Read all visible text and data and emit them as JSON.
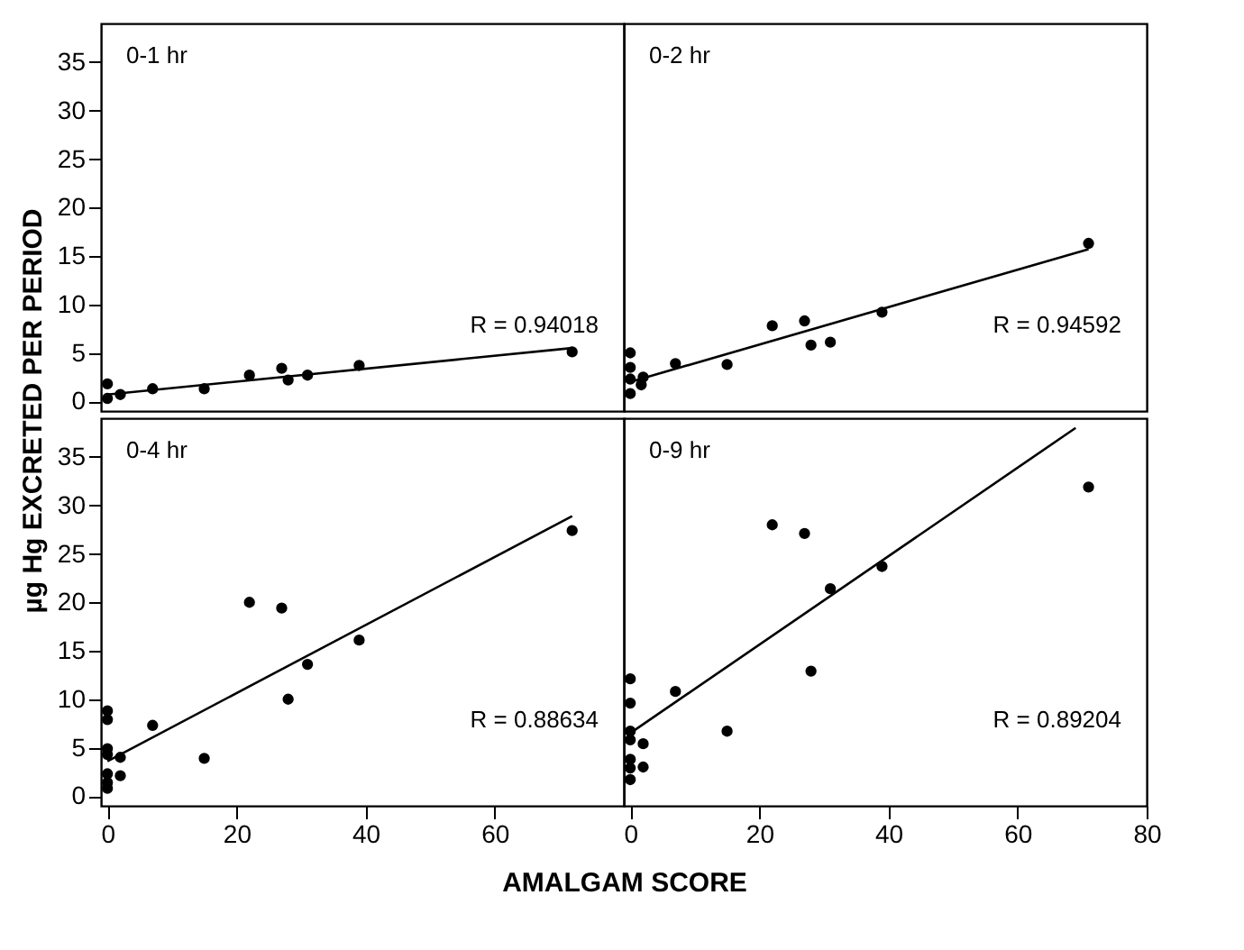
{
  "chart_data": [
    {
      "type": "scatter",
      "ylabel": "µg Hg EXCRETED PER PERIOD",
      "xlim": [
        -1,
        80
      ],
      "ylim": [
        -1,
        39
      ],
      "yticks": [
        0,
        5,
        10,
        15,
        20,
        25,
        30,
        35
      ],
      "tick_labels": "y",
      "marker": "circle",
      "annotations": [
        "0-1 hr",
        "R = 0.94018"
      ],
      "series": [
        {
          "type": "scatter",
          "color": "#000000",
          "x": [
            0,
            0,
            2,
            7,
            15,
            22,
            27,
            28,
            31,
            39,
            72
          ],
          "values": [
            1.8,
            0.3,
            0.7,
            1.3,
            1.3,
            2.7,
            3.4,
            2.2,
            2.7,
            3.7,
            5.1
          ]
        },
        {
          "type": "line",
          "marker": "none",
          "color": "#000000",
          "x": [
            0,
            72
          ],
          "values": [
            0.7,
            5.5
          ]
        }
      ]
    },
    {
      "type": "scatter",
      "xlim": [
        -1,
        80
      ],
      "ylim": [
        -1,
        39
      ],
      "tick_labels": false,
      "marker": "circle",
      "annotations": [
        "0-2 hr",
        "R = 0.94592"
      ],
      "series": [
        {
          "type": "scatter",
          "color": "#000000",
          "x": [
            0,
            0,
            0,
            0,
            1.7,
            2,
            7,
            15,
            22,
            27,
            28,
            31,
            39,
            71
          ],
          "values": [
            5.0,
            3.5,
            2.3,
            0.8,
            1.7,
            2.5,
            3.9,
            3.8,
            7.8,
            8.3,
            5.8,
            6.1,
            9.2,
            16.3
          ]
        },
        {
          "type": "line",
          "marker": "none",
          "color": "#000000",
          "x": [
            0,
            71
          ],
          "values": [
            2.0,
            15.7
          ]
        }
      ]
    },
    {
      "type": "scatter",
      "xlabel": "AMALGAM SCORE",
      "xlim": [
        -1,
        80
      ],
      "ylim": [
        -1,
        39
      ],
      "xticks": [
        0,
        20,
        40,
        60
      ],
      "yticks": [
        0,
        5,
        10,
        15,
        20,
        25,
        30,
        35
      ],
      "marker": "circle",
      "annotations": [
        "0-4 hr",
        "R = 0.88634"
      ],
      "series": [
        {
          "type": "scatter",
          "color": "#000000",
          "x": [
            0,
            0,
            0,
            0,
            2,
            2,
            0,
            0,
            0,
            7,
            15,
            22,
            27,
            28,
            31,
            39,
            72
          ],
          "values": [
            8.8,
            7.9,
            4.9,
            4.3,
            4.0,
            2.1,
            2.3,
            1.4,
            0.8,
            7.3,
            3.9,
            20.0,
            19.4,
            10.0,
            13.6,
            16.1,
            27.4
          ]
        },
        {
          "type": "line",
          "marker": "none",
          "color": "#000000",
          "x": [
            0,
            72
          ],
          "values": [
            3.6,
            28.9
          ]
        }
      ]
    },
    {
      "type": "scatter",
      "xlim": [
        -1,
        80
      ],
      "ylim": [
        -1,
        39
      ],
      "xticks": [
        0,
        20,
        40,
        60,
        80
      ],
      "tick_labels": "x",
      "marker": "circle",
      "annotations": [
        "0-9 hr",
        "R = 0.89204"
      ],
      "series": [
        {
          "type": "scatter",
          "color": "#000000",
          "x": [
            0,
            0,
            0,
            0,
            2,
            0,
            0,
            2,
            0,
            7,
            15,
            22,
            27,
            28,
            31,
            39,
            71
          ],
          "values": [
            12.1,
            9.6,
            6.7,
            5.8,
            5.4,
            3.8,
            2.9,
            3.0,
            1.7,
            10.8,
            6.7,
            28.0,
            27.1,
            12.9,
            21.4,
            23.7,
            31.9
          ]
        },
        {
          "type": "line",
          "marker": "none",
          "color": "#000000",
          "x": [
            0,
            69
          ],
          "values": [
            6.5,
            38.0
          ]
        }
      ]
    }
  ]
}
